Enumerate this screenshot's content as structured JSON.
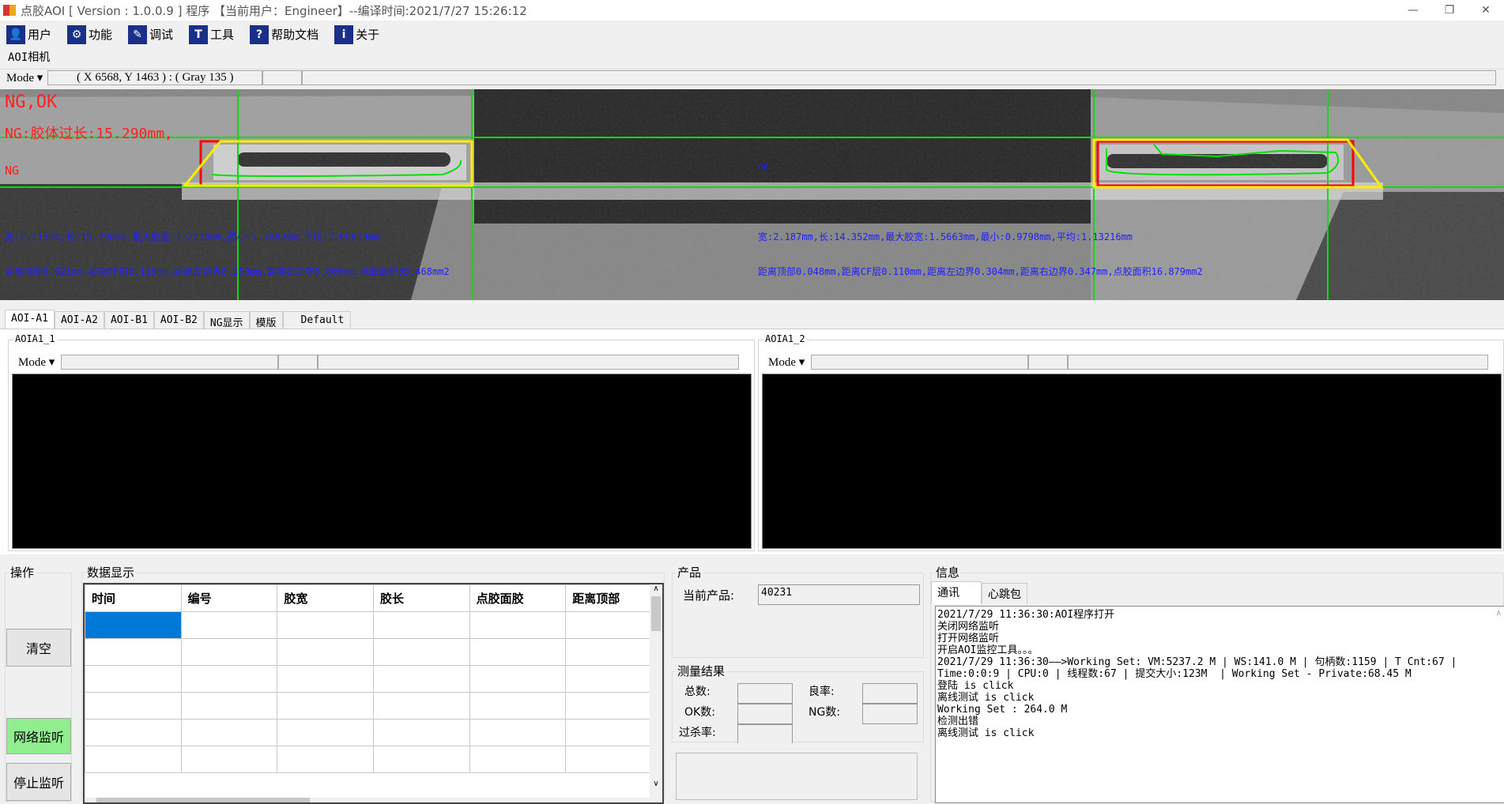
{
  "window": {
    "title": "点胶AOI [ Version : 1.0.0.9 ]  程序 【当前用户：Engineer】--编译时间:2021/7/27 15:26:12",
    "minimize": "—",
    "restore": "❐",
    "close": "✕"
  },
  "toolbar": {
    "items": [
      {
        "label": "用户",
        "icon": "users-icon",
        "glyph": "👤"
      },
      {
        "label": "功能",
        "icon": "gear-icon",
        "glyph": "⚙"
      },
      {
        "label": "调试",
        "icon": "debug-icon",
        "glyph": "✎"
      },
      {
        "label": "工具",
        "icon": "hammer-icon",
        "glyph": "T"
      },
      {
        "label": "帮助文档",
        "icon": "help-icon",
        "glyph": "?"
      },
      {
        "label": "关于",
        "icon": "info-icon",
        "glyph": "i"
      }
    ]
  },
  "camera": {
    "group_label": "AOI相机",
    "mode_label": "Mode",
    "coord_readout": "( X 6568, Y 1463 ) : ( Gray 135 )",
    "overlay": {
      "result": "NG,OK",
      "ng_reason": "NG:胶体过长:15.290mm,",
      "left_status": "NG",
      "right_status": "OK",
      "left_line1": "宽:2.215mm,长:15.290mm,最大胶宽:2.2218mm,最小:1.7802mm,平均:2.09919mm",
      "left_line2": "距离顶部0.021mm,距离CF层0.110mm,距离左边界0.153mm,距离右边界0.000mm,点胶面积30.468mm2",
      "right_line1": "宽:2.187mm,长:14.352mm,最大胶宽:1.5663mm,最小:0.9798mm,平均:1.13216mm",
      "right_line2": "距离顶部0.048mm,距离CF层0.110mm,距离左边界0.304mm,距离右边界0.347mm,点胶面积16.879mm2"
    },
    "colors": {
      "ng": "#ff2020",
      "info": "#2020ff",
      "guide": "#00e000",
      "roi": "#ffee00",
      "box": "#ff0000"
    }
  },
  "tabs": [
    "AOI-A1",
    "AOI-A2",
    "AOI-B1",
    "AOI-B2",
    "NG显示",
    "模版",
    "Default"
  ],
  "views": [
    {
      "title": "AOIA1_1",
      "mode": "Mode"
    },
    {
      "title": "AOIA1_2",
      "mode": "Mode"
    }
  ],
  "operations": {
    "title": "操作",
    "clear": "清空",
    "listen": "网络监听",
    "stop": "停止监听",
    "listen_color": "#90ee90"
  },
  "data_display": {
    "title": "数据显示",
    "columns": [
      "时间",
      "编号",
      "胶宽",
      "胶长",
      "点胶面胶",
      "距离顶部"
    ],
    "selected_color": "#0078d7"
  },
  "product": {
    "title": "产品",
    "current_label": "当前产品:",
    "current_value": "40231"
  },
  "measure": {
    "title": "测量结果",
    "total": "总数:",
    "yield": "良率:",
    "ok": "OK数:",
    "ng": "NG数:",
    "overkill": "过杀率:"
  },
  "info": {
    "title": "信息",
    "tabs": [
      "通讯",
      "心跳包"
    ],
    "log": [
      "2021/7/29 11:36:30:AOI程序打开",
      "关闭网络监听",
      "打开网络监听",
      "开启AOI监控工具。。。",
      "2021/7/29 11:36:30——>Working Set: VM:5237.2 M | WS:141.0 M | 句柄数:1159 | T Cnt:67 |",
      "Time:0:0:9 | CPU:0 | 线程数:67 | 提交大小:123M  | Working Set - Private:68.45 M",
      "登陆 is click",
      "离线测试 is click",
      "Working Set : 264.0 M",
      "检测出错",
      "离线测试 is click"
    ]
  }
}
